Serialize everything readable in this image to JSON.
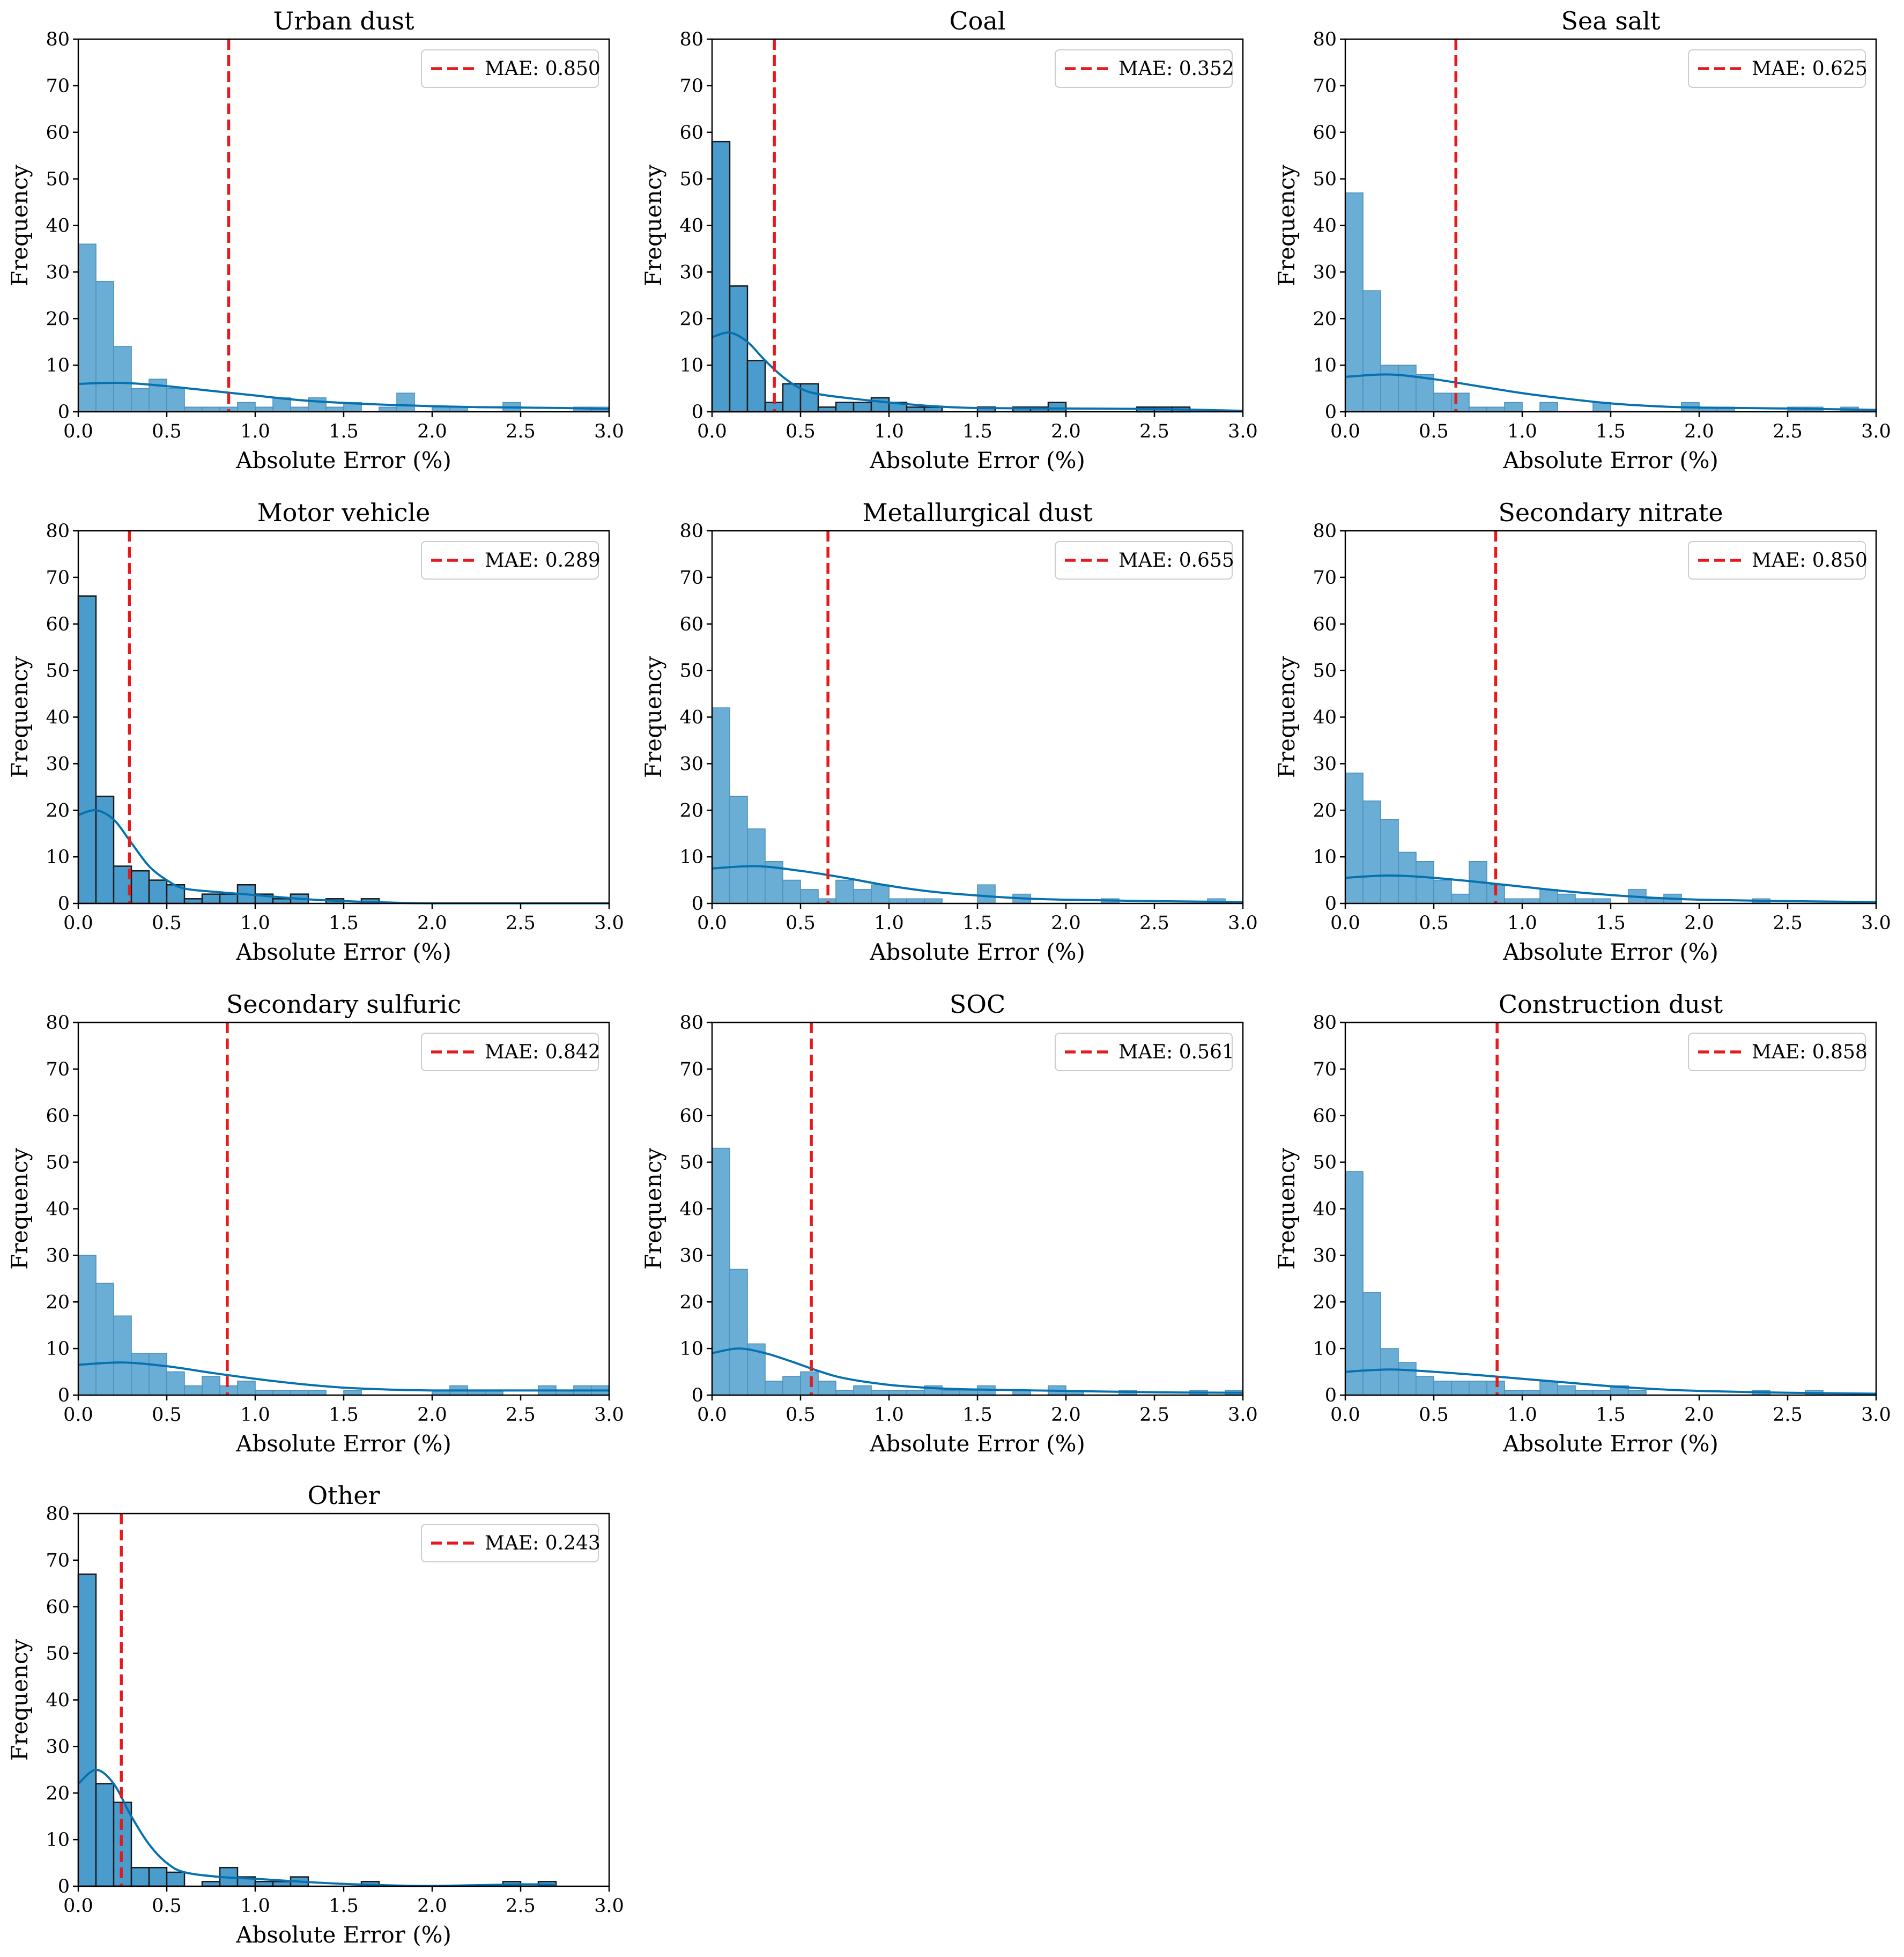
{
  "figure": {
    "x_label": "Absolute Error (%)",
    "y_label": "Frequency",
    "colors": {
      "bar_fill": "#6aaed6",
      "bar_fill_dark": "#4a9ccc",
      "kde_line": "#0571b0",
      "mae_line": "#e41a1c",
      "axis": "#000000"
    }
  },
  "chart_data": [
    {
      "type": "bar",
      "title": "Urban dust",
      "xlabel": "Absolute Error (%)",
      "ylabel": "Frequency",
      "xlim": [
        0,
        3.0
      ],
      "ylim": [
        0,
        80
      ],
      "x_ticks": [
        "0.0",
        "0.5",
        "1.0",
        "1.5",
        "2.0",
        "2.5",
        "3.0"
      ],
      "y_ticks": [
        "0",
        "10",
        "20",
        "30",
        "40",
        "50",
        "60",
        "70",
        "80"
      ],
      "bin_width": 0.1,
      "counts": [
        36,
        28,
        14,
        5,
        7,
        5,
        1,
        1,
        1,
        2,
        1,
        3,
        1,
        3,
        1,
        2,
        0,
        1,
        4,
        0,
        1,
        1,
        0,
        0,
        2,
        0,
        0,
        0,
        1,
        1
      ],
      "kde": [
        [
          0,
          6
        ],
        [
          0.25,
          6.2
        ],
        [
          0.5,
          5.5
        ],
        [
          0.75,
          4.5
        ],
        [
          1.0,
          3.5
        ],
        [
          1.25,
          2.5
        ],
        [
          1.5,
          1.9
        ],
        [
          1.75,
          1.5
        ],
        [
          2.0,
          1.2
        ],
        [
          2.25,
          1.0
        ],
        [
          2.5,
          0.9
        ],
        [
          2.75,
          0.8
        ],
        [
          3.0,
          0.6
        ]
      ],
      "kde_style": "normal",
      "mae": 0.85,
      "legend_label": "MAE: 0.850",
      "legend_position": "upper right"
    },
    {
      "type": "bar",
      "title": "Coal",
      "xlabel": "Absolute Error (%)",
      "ylabel": "Frequency",
      "xlim": [
        0,
        3.0
      ],
      "ylim": [
        0,
        80
      ],
      "x_ticks": [
        "0.0",
        "0.5",
        "1.0",
        "1.5",
        "2.0",
        "2.5",
        "3.0"
      ],
      "y_ticks": [
        "0",
        "10",
        "20",
        "30",
        "40",
        "50",
        "60",
        "70",
        "80"
      ],
      "bin_width": 0.1,
      "counts": [
        58,
        27,
        11,
        2,
        6,
        6,
        1,
        2,
        2,
        3,
        2,
        1,
        1,
        0,
        0,
        1,
        0,
        1,
        1,
        2,
        0,
        0,
        0,
        0,
        1,
        1,
        1,
        0,
        0,
        0
      ],
      "kde": [
        [
          0,
          16
        ],
        [
          0.1,
          17
        ],
        [
          0.2,
          15
        ],
        [
          0.3,
          11
        ],
        [
          0.4,
          7.5
        ],
        [
          0.5,
          5
        ],
        [
          0.6,
          3.8
        ],
        [
          0.8,
          2.8
        ],
        [
          1.0,
          2.0
        ],
        [
          1.25,
          1.2
        ],
        [
          1.5,
          0.8
        ],
        [
          2.0,
          0.7
        ],
        [
          2.5,
          0.6
        ],
        [
          3.0,
          0.2
        ]
      ],
      "kde_style": "dark",
      "mae": 0.352,
      "legend_label": "MAE: 0.352",
      "legend_position": "upper right"
    },
    {
      "type": "bar",
      "title": "Sea salt",
      "xlabel": "Absolute Error (%)",
      "ylabel": "Frequency",
      "xlim": [
        0,
        3.0
      ],
      "ylim": [
        0,
        80
      ],
      "x_ticks": [
        "0.0",
        "0.5",
        "1.0",
        "1.5",
        "2.0",
        "2.5",
        "3.0"
      ],
      "y_ticks": [
        "0",
        "10",
        "20",
        "30",
        "40",
        "50",
        "60",
        "70",
        "80"
      ],
      "bin_width": 0.1,
      "counts": [
        47,
        26,
        10,
        10,
        8,
        4,
        4,
        1,
        1,
        2,
        0,
        2,
        0,
        0,
        2,
        0,
        0,
        0,
        0,
        2,
        1,
        1,
        0,
        0,
        0,
        1,
        1,
        0,
        1,
        0
      ],
      "kde": [
        [
          0,
          7.5
        ],
        [
          0.25,
          8
        ],
        [
          0.5,
          7
        ],
        [
          0.75,
          5.5
        ],
        [
          1.0,
          4
        ],
        [
          1.25,
          2.8
        ],
        [
          1.5,
          1.8
        ],
        [
          1.75,
          1.2
        ],
        [
          2.0,
          0.9
        ],
        [
          2.5,
          0.7
        ],
        [
          3.0,
          0.4
        ]
      ],
      "kde_style": "normal",
      "mae": 0.625,
      "legend_label": "MAE: 0.625",
      "legend_position": "upper right"
    },
    {
      "type": "bar",
      "title": "Motor vehicle",
      "xlabel": "Absolute Error (%)",
      "ylabel": "Frequency",
      "xlim": [
        0,
        3.0
      ],
      "ylim": [
        0,
        80
      ],
      "x_ticks": [
        "0.0",
        "0.5",
        "1.0",
        "1.5",
        "2.0",
        "2.5",
        "3.0"
      ],
      "y_ticks": [
        "0",
        "10",
        "20",
        "30",
        "40",
        "50",
        "60",
        "70",
        "80"
      ],
      "bin_width": 0.1,
      "counts": [
        66,
        23,
        8,
        7,
        5,
        4,
        1,
        2,
        2,
        4,
        2,
        1,
        2,
        0,
        1,
        0,
        1,
        0,
        0,
        0,
        0,
        0,
        0,
        0,
        0,
        0,
        0,
        0,
        0,
        0
      ],
      "kde": [
        [
          0,
          19
        ],
        [
          0.1,
          20
        ],
        [
          0.2,
          18
        ],
        [
          0.3,
          13
        ],
        [
          0.4,
          8
        ],
        [
          0.5,
          5
        ],
        [
          0.6,
          3.2
        ],
        [
          0.8,
          2.4
        ],
        [
          1.0,
          1.8
        ],
        [
          1.25,
          1.0
        ],
        [
          1.5,
          0.5
        ],
        [
          1.75,
          0.2
        ],
        [
          2.0,
          0.05
        ],
        [
          3.0,
          0.05
        ]
      ],
      "kde_style": "dark",
      "mae": 0.289,
      "legend_label": "MAE: 0.289",
      "legend_position": "upper right"
    },
    {
      "type": "bar",
      "title": "Metallurgical dust",
      "xlabel": "Absolute Error (%)",
      "ylabel": "Frequency",
      "xlim": [
        0,
        3.0
      ],
      "ylim": [
        0,
        80
      ],
      "x_ticks": [
        "0.0",
        "0.5",
        "1.0",
        "1.5",
        "2.0",
        "2.5",
        "3.0"
      ],
      "y_ticks": [
        "0",
        "10",
        "20",
        "30",
        "40",
        "50",
        "60",
        "70",
        "80"
      ],
      "bin_width": 0.1,
      "counts": [
        42,
        23,
        16,
        9,
        5,
        3,
        1,
        5,
        3,
        4,
        1,
        1,
        1,
        0,
        0,
        4,
        0,
        2,
        0,
        0,
        0,
        0,
        1,
        0,
        0,
        0,
        0,
        0,
        1,
        0
      ],
      "kde": [
        [
          0,
          7.5
        ],
        [
          0.25,
          8
        ],
        [
          0.5,
          7
        ],
        [
          0.75,
          5.5
        ],
        [
          1.0,
          3.8
        ],
        [
          1.25,
          2.5
        ],
        [
          1.5,
          1.7
        ],
        [
          1.75,
          1.1
        ],
        [
          2.0,
          0.8
        ],
        [
          2.5,
          0.5
        ],
        [
          3.0,
          0.3
        ]
      ],
      "kde_style": "normal",
      "mae": 0.655,
      "legend_label": "MAE: 0.655",
      "legend_position": "upper right"
    },
    {
      "type": "bar",
      "title": "Secondary nitrate",
      "xlabel": "Absolute Error (%)",
      "ylabel": "Frequency",
      "xlim": [
        0,
        3.0
      ],
      "ylim": [
        0,
        80
      ],
      "x_ticks": [
        "0.0",
        "0.5",
        "1.0",
        "1.5",
        "2.0",
        "2.5",
        "3.0"
      ],
      "y_ticks": [
        "0",
        "10",
        "20",
        "30",
        "40",
        "50",
        "60",
        "70",
        "80"
      ],
      "bin_width": 0.1,
      "counts": [
        28,
        22,
        18,
        11,
        9,
        5,
        2,
        9,
        4,
        1,
        1,
        3,
        2,
        1,
        1,
        0,
        3,
        1,
        2,
        0,
        0,
        0,
        0,
        1,
        0,
        0,
        0,
        0,
        0,
        0
      ],
      "kde": [
        [
          0,
          5.5
        ],
        [
          0.25,
          6
        ],
        [
          0.5,
          5.5
        ],
        [
          0.75,
          4.6
        ],
        [
          1.0,
          3.6
        ],
        [
          1.25,
          2.6
        ],
        [
          1.5,
          1.8
        ],
        [
          1.75,
          1.2
        ],
        [
          2.0,
          0.8
        ],
        [
          2.5,
          0.5
        ],
        [
          3.0,
          0.3
        ]
      ],
      "kde_style": "normal",
      "mae": 0.85,
      "legend_label": "MAE: 0.850",
      "legend_position": "upper right"
    },
    {
      "type": "bar",
      "title": "Secondary sulfuric",
      "xlabel": "Absolute Error (%)",
      "ylabel": "Frequency",
      "xlim": [
        0,
        3.0
      ],
      "ylim": [
        0,
        80
      ],
      "x_ticks": [
        "0.0",
        "0.5",
        "1.0",
        "1.5",
        "2.0",
        "2.5",
        "3.0"
      ],
      "y_ticks": [
        "0",
        "10",
        "20",
        "30",
        "40",
        "50",
        "60",
        "70",
        "80"
      ],
      "bin_width": 0.1,
      "counts": [
        30,
        24,
        17,
        9,
        9,
        5,
        2,
        4,
        2,
        3,
        1,
        1,
        1,
        1,
        0,
        1,
        0,
        0,
        0,
        0,
        1,
        2,
        1,
        1,
        0,
        0,
        2,
        1,
        2,
        2
      ],
      "kde": [
        [
          0,
          6.5
        ],
        [
          0.25,
          7
        ],
        [
          0.5,
          6.2
        ],
        [
          0.75,
          4.8
        ],
        [
          1.0,
          3.5
        ],
        [
          1.25,
          2.4
        ],
        [
          1.5,
          1.6
        ],
        [
          1.75,
          1.2
        ],
        [
          2.0,
          1.0
        ],
        [
          2.5,
          1.0
        ],
        [
          3.0,
          1.0
        ]
      ],
      "kde_style": "normal",
      "mae": 0.842,
      "legend_label": "MAE: 0.842",
      "legend_position": "upper right"
    },
    {
      "type": "bar",
      "title": "SOC",
      "xlabel": "Absolute Error (%)",
      "ylabel": "Frequency",
      "xlim": [
        0,
        3.0
      ],
      "ylim": [
        0,
        80
      ],
      "x_ticks": [
        "0.0",
        "0.5",
        "1.0",
        "1.5",
        "2.0",
        "2.5",
        "3.0"
      ],
      "y_ticks": [
        "0",
        "10",
        "20",
        "30",
        "40",
        "50",
        "60",
        "70",
        "80"
      ],
      "bin_width": 0.1,
      "counts": [
        53,
        27,
        11,
        3,
        4,
        5,
        3,
        1,
        2,
        1,
        1,
        1,
        2,
        1,
        1,
        2,
        0,
        1,
        0,
        2,
        1,
        0,
        0,
        1,
        0,
        0,
        0,
        1,
        0,
        1
      ],
      "kde": [
        [
          0,
          9
        ],
        [
          0.15,
          10
        ],
        [
          0.3,
          9
        ],
        [
          0.45,
          7.2
        ],
        [
          0.6,
          5.2
        ],
        [
          0.75,
          3.6
        ],
        [
          1.0,
          2.2
        ],
        [
          1.25,
          1.5
        ],
        [
          1.5,
          1.2
        ],
        [
          2.0,
          0.9
        ],
        [
          2.5,
          0.6
        ],
        [
          3.0,
          0.5
        ]
      ],
      "kde_style": "normal",
      "mae": 0.561,
      "legend_label": "MAE: 0.561",
      "legend_position": "upper right"
    },
    {
      "type": "bar",
      "title": "Construction dust",
      "xlabel": "Absolute Error (%)",
      "ylabel": "Frequency",
      "xlim": [
        0,
        3.0
      ],
      "ylim": [
        0,
        80
      ],
      "x_ticks": [
        "0.0",
        "0.5",
        "1.0",
        "1.5",
        "2.0",
        "2.5",
        "3.0"
      ],
      "y_ticks": [
        "0",
        "10",
        "20",
        "30",
        "40",
        "50",
        "60",
        "70",
        "80"
      ],
      "bin_width": 0.1,
      "counts": [
        48,
        22,
        10,
        7,
        4,
        3,
        3,
        3,
        3,
        1,
        1,
        3,
        2,
        1,
        1,
        2,
        1,
        0,
        0,
        0,
        0,
        0,
        0,
        1,
        0,
        0,
        1,
        0,
        0,
        0
      ],
      "kde": [
        [
          0,
          5
        ],
        [
          0.25,
          5.5
        ],
        [
          0.5,
          5.0
        ],
        [
          0.75,
          4.3
        ],
        [
          1.0,
          3.5
        ],
        [
          1.25,
          2.7
        ],
        [
          1.5,
          1.9
        ],
        [
          1.75,
          1.3
        ],
        [
          2.0,
          0.9
        ],
        [
          2.5,
          0.5
        ],
        [
          3.0,
          0.3
        ]
      ],
      "kde_style": "normal",
      "mae": 0.858,
      "legend_label": "MAE: 0.858",
      "legend_position": "upper right"
    },
    {
      "type": "bar",
      "title": "Other",
      "xlabel": "Absolute Error (%)",
      "ylabel": "Frequency",
      "xlim": [
        0,
        3.0
      ],
      "ylim": [
        0,
        80
      ],
      "x_ticks": [
        "0.0",
        "0.5",
        "1.0",
        "1.5",
        "2.0",
        "2.5",
        "3.0"
      ],
      "y_ticks": [
        "0",
        "10",
        "20",
        "30",
        "40",
        "50",
        "60",
        "70",
        "80"
      ],
      "bin_width": 0.1,
      "counts": [
        67,
        22,
        18,
        4,
        4,
        3,
        0,
        1,
        4,
        2,
        1,
        1,
        2,
        0,
        0,
        0,
        1,
        0,
        0,
        0,
        0,
        0,
        0,
        0,
        1,
        0,
        1,
        0,
        0,
        0
      ],
      "kde": [
        [
          0,
          22
        ],
        [
          0.1,
          25
        ],
        [
          0.2,
          22
        ],
        [
          0.3,
          15
        ],
        [
          0.4,
          9
        ],
        [
          0.5,
          5
        ],
        [
          0.6,
          3
        ],
        [
          0.8,
          2
        ],
        [
          1.0,
          1.6
        ],
        [
          1.25,
          1.0
        ],
        [
          1.5,
          0.5
        ],
        [
          1.75,
          0.2
        ],
        [
          2.0,
          0.05
        ],
        [
          2.5,
          0.4
        ],
        [
          2.7,
          0.3
        ]
      ],
      "kde_style": "dark",
      "mae": 0.243,
      "legend_label": "MAE: 0.243",
      "legend_position": "upper right"
    }
  ]
}
